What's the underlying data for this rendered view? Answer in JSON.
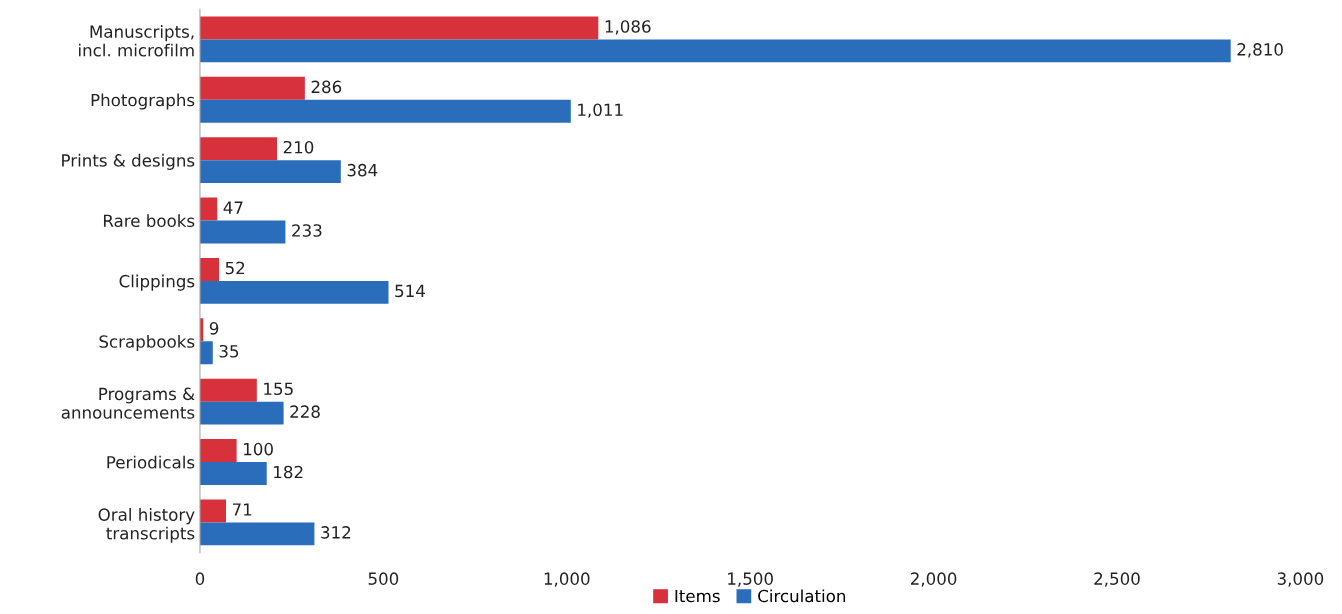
{
  "chart_data": {
    "type": "bar",
    "orientation": "horizontal",
    "categories": [
      "Manuscripts,\nincl. microfilm",
      "Photographs",
      "Prints & designs",
      "Rare books",
      "Clippings",
      "Scrapbooks",
      "Programs &\nannouncements",
      "Periodicals",
      "Oral history\ntranscripts"
    ],
    "series": [
      {
        "name": "Items",
        "color": "#d7323c",
        "values": [
          1086,
          286,
          210,
          47,
          52,
          9,
          155,
          100,
          71
        ],
        "value_labels": [
          "1,086",
          "286",
          "210",
          "47",
          "52",
          "9",
          "155",
          "100",
          "71"
        ]
      },
      {
        "name": "Circulation",
        "color": "#2a6ebb",
        "values": [
          2810,
          1011,
          384,
          233,
          514,
          35,
          228,
          182,
          312
        ],
        "value_labels": [
          "2,810",
          "1,011",
          "384",
          "233",
          "514",
          "35",
          "228",
          "182",
          "312"
        ]
      }
    ],
    "xlim": [
      0,
      3000
    ],
    "xticks": [
      0,
      500,
      {
        "value": 1000,
        "label": "1,000"
      },
      {
        "value": 1500,
        "label": "1,500"
      },
      {
        "value": 2000,
        "label": "2,000"
      },
      {
        "value": 2500,
        "label": "2,500"
      },
      {
        "value": 3000,
        "label": "3,000"
      }
    ],
    "grid": false,
    "legend": "bottom"
  }
}
